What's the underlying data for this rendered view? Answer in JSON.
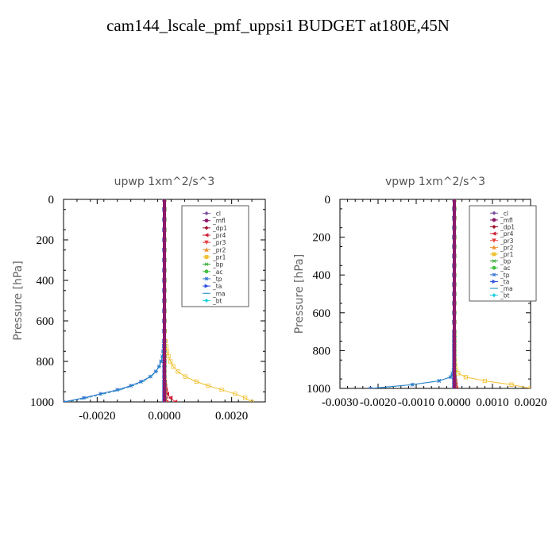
{
  "page": {
    "title": "cam144_lscale_pmf_uppsi1  BUDGET at180E,45N"
  },
  "chart_data": [
    {
      "type": "line",
      "title": "upwp   1xm^2/s^3",
      "ylabel": "Pressure [hPa]",
      "xlabel": "",
      "xlim": [
        -0.003,
        0.003
      ],
      "ylim": [
        1000,
        0
      ],
      "y_ticks": [
        0,
        200,
        400,
        600,
        800,
        1000
      ],
      "y_tick_labels": [
        "0",
        "200",
        "400",
        "600",
        "800",
        "1000"
      ],
      "x_ticks": [
        -0.002,
        0.0,
        0.002
      ],
      "x_tick_labels": [
        "-0.0020",
        "0.0000",
        "0.0020"
      ],
      "legend_position": "top-right",
      "pressure_levels": [
        0,
        50,
        100,
        150,
        200,
        250,
        300,
        350,
        400,
        450,
        500,
        550,
        600,
        650,
        700,
        725,
        750,
        775,
        800,
        825,
        850,
        875,
        900,
        920,
        940,
        960,
        980,
        1000
      ],
      "series": [
        {
          "name": "_cl",
          "color": "#7b4fa0",
          "marker": "diamond",
          "values": [
            0,
            0,
            0,
            0,
            0,
            0,
            0,
            0,
            0,
            0,
            0,
            0,
            0,
            0,
            0,
            0,
            0,
            0,
            0,
            0,
            0,
            0,
            0,
            0,
            0,
            0,
            0,
            0
          ]
        },
        {
          "name": "_mfl",
          "color": "#8b1a6b",
          "marker": "circle",
          "values": [
            0,
            0,
            0,
            0,
            0,
            0,
            0,
            0,
            0,
            0,
            0,
            0,
            0,
            0,
            0,
            0,
            0,
            0,
            0,
            0,
            0,
            0,
            0,
            0,
            0,
            0,
            0,
            0
          ]
        },
        {
          "name": "_dp1",
          "color": "#a0102a",
          "marker": "diamond",
          "values": [
            0,
            0,
            0,
            0,
            0,
            0,
            0,
            0,
            0,
            0,
            0,
            0,
            0,
            0,
            0,
            0,
            0,
            0,
            0,
            0,
            0,
            0,
            0,
            0,
            1e-05,
            2e-05,
            4e-05,
            8e-05
          ]
        },
        {
          "name": "_pr4",
          "color": "#d0203a",
          "marker": "triangle-left",
          "values": [
            0,
            0,
            0,
            0,
            0,
            0,
            0,
            0,
            0,
            0,
            0,
            0,
            0,
            0,
            0,
            0,
            0,
            0,
            0,
            0,
            0,
            0,
            1e-05,
            2e-05,
            4e-05,
            8e-05,
            0.00018,
            0.00032
          ]
        },
        {
          "name": "_pr3",
          "color": "#e84040",
          "marker": "triangle-down",
          "values": [
            0,
            0,
            0,
            0,
            0,
            0,
            0,
            0,
            0,
            0,
            0,
            0,
            0,
            0,
            0,
            0,
            0,
            0,
            0,
            0,
            0,
            0,
            0,
            0,
            1e-05,
            2e-05,
            4e-05,
            6e-05
          ]
        },
        {
          "name": "_pr2",
          "color": "#f09030",
          "marker": "triangle-up",
          "values": [
            0,
            0,
            0,
            0,
            0,
            0,
            0,
            0,
            0,
            0,
            0,
            0,
            0,
            0,
            0,
            0,
            0,
            0,
            0,
            0,
            0,
            0,
            0,
            0,
            0,
            0,
            0,
            0
          ]
        },
        {
          "name": "_pr1",
          "color": "#f0c030",
          "marker": "square",
          "values": [
            0,
            0,
            0,
            0,
            0,
            0,
            0,
            0,
            0,
            0,
            0,
            0,
            0,
            1e-05,
            3e-05,
            5e-05,
            8e-05,
            0.00012,
            0.00018,
            0.00026,
            0.0004,
            0.00062,
            0.00095,
            0.0013,
            0.0017,
            0.0021,
            0.0024,
            0.0026
          ]
        },
        {
          "name": "_bp",
          "color": "#20a020",
          "marker": "cross",
          "values": [
            0,
            0,
            0,
            0,
            0,
            0,
            0,
            0,
            0,
            0,
            0,
            0,
            0,
            0,
            0,
            0,
            0,
            0,
            0,
            0,
            0,
            0,
            0,
            0,
            0,
            0,
            0,
            0
          ]
        },
        {
          "name": "_ac",
          "color": "#40c040",
          "marker": "circle",
          "values": [
            0,
            0,
            0,
            0,
            0,
            0,
            0,
            0,
            0,
            0,
            0,
            0,
            0,
            0,
            0,
            0,
            0,
            0,
            0,
            0,
            0,
            0,
            0,
            0,
            0,
            0,
            0,
            0
          ]
        },
        {
          "name": "_tp",
          "color": "#3070d0",
          "marker": "star",
          "values": [
            0,
            0,
            0,
            0,
            0,
            0,
            0,
            0,
            0,
            0,
            0,
            0,
            0,
            0,
            -1e-05,
            -2e-05,
            -4e-05,
            -6e-05,
            -0.0001,
            -0.00016,
            -0.00026,
            -0.00042,
            -0.0007,
            -0.001,
            -0.0014,
            -0.0019,
            -0.0024,
            -0.003
          ]
        },
        {
          "name": "_ta",
          "color": "#3050e0",
          "marker": "triangle-right",
          "values": [
            0,
            0,
            0,
            0,
            0,
            0,
            0,
            0,
            0,
            0,
            0,
            0,
            0,
            0,
            0,
            0,
            0,
            0,
            0,
            0,
            0,
            0,
            0,
            0,
            0,
            0,
            0,
            0
          ]
        },
        {
          "name": "_ma",
          "color": "#2090c0",
          "marker": "dash",
          "values": [
            0,
            0,
            0,
            0,
            0,
            0,
            0,
            0,
            0,
            0,
            0,
            0,
            0,
            0,
            -1e-05,
            -2e-05,
            -4e-05,
            -6e-05,
            -0.0001,
            -0.00015,
            -0.00024,
            -0.0004,
            -0.00065,
            -0.00095,
            -0.0013,
            -0.0018,
            -0.0023,
            -0.0029
          ]
        },
        {
          "name": "_bt",
          "color": "#20d0e0",
          "marker": "diamond",
          "values": [
            0,
            0,
            0,
            0,
            0,
            0,
            0,
            0,
            0,
            0,
            0,
            0,
            0,
            0,
            0,
            0,
            0,
            0,
            0,
            0,
            0,
            0,
            0,
            0,
            0,
            0,
            0,
            0
          ]
        }
      ]
    },
    {
      "type": "line",
      "title": "vpwp   1xm^2/s^3",
      "ylabel": "Pressure [hPa]",
      "xlabel": "",
      "xlim": [
        -0.003,
        0.002
      ],
      "ylim": [
        1000,
        0
      ],
      "y_ticks": [
        0,
        200,
        400,
        600,
        800,
        1000
      ],
      "y_tick_labels": [
        "0",
        "200",
        "400",
        "600",
        "800",
        "1000"
      ],
      "x_ticks": [
        -0.003,
        -0.002,
        -0.001,
        0.0,
        0.001,
        0.002
      ],
      "x_tick_labels": [
        "-0.0030",
        "-0.0020",
        "-0.0010",
        "0.0000",
        "0.0010",
        "0.0020"
      ],
      "legend_position": "top-right",
      "pressure_levels": [
        0,
        50,
        100,
        150,
        200,
        250,
        300,
        350,
        400,
        450,
        500,
        550,
        600,
        650,
        700,
        725,
        750,
        775,
        800,
        825,
        850,
        875,
        900,
        920,
        940,
        960,
        980,
        1000
      ],
      "series": [
        {
          "name": "_cl",
          "color": "#7b4fa0",
          "marker": "diamond",
          "values": [
            0,
            0,
            0,
            0,
            0,
            0,
            0,
            0,
            0,
            0,
            0,
            0,
            0,
            0,
            0,
            0,
            0,
            0,
            0,
            0,
            0,
            0,
            0,
            0,
            0,
            0,
            0,
            0
          ]
        },
        {
          "name": "_mfl",
          "color": "#8b1a6b",
          "marker": "circle",
          "values": [
            0,
            0,
            0,
            0,
            0,
            0,
            0,
            0,
            0,
            0,
            0,
            0,
            0,
            0,
            0,
            0,
            0,
            0,
            0,
            0,
            0,
            0,
            0,
            0,
            0,
            0,
            0,
            0
          ]
        },
        {
          "name": "_dp1",
          "color": "#a0102a",
          "marker": "diamond",
          "values": [
            0,
            0,
            0,
            0,
            0,
            0,
            0,
            0,
            0,
            0,
            0,
            0,
            0,
            0,
            0,
            0,
            0,
            0,
            0,
            0,
            0,
            0,
            0,
            0,
            0,
            0,
            1e-05,
            2e-05
          ]
        },
        {
          "name": "_pr4",
          "color": "#d0203a",
          "marker": "triangle-left",
          "values": [
            0,
            0,
            0,
            0,
            0,
            0,
            0,
            0,
            0,
            0,
            0,
            0,
            0,
            0,
            0,
            0,
            0,
            0,
            0,
            0,
            0,
            0,
            0,
            0,
            1e-05,
            2e-05,
            3e-05,
            5e-05
          ]
        },
        {
          "name": "_pr3",
          "color": "#e84040",
          "marker": "triangle-down",
          "values": [
            0,
            0,
            0,
            0,
            0,
            0,
            0,
            0,
            0,
            0,
            0,
            0,
            0,
            0,
            0,
            0,
            0,
            0,
            0,
            0,
            0,
            0,
            0,
            0,
            0,
            0,
            0,
            0
          ]
        },
        {
          "name": "_pr2",
          "color": "#f09030",
          "marker": "triangle-up",
          "values": [
            0,
            0,
            0,
            0,
            0,
            0,
            0,
            0,
            0,
            0,
            0,
            0,
            0,
            0,
            0,
            0,
            0,
            0,
            0,
            0,
            0,
            0,
            0,
            0,
            0,
            0,
            0,
            0
          ]
        },
        {
          "name": "_pr1",
          "color": "#f0c030",
          "marker": "square",
          "values": [
            0,
            0,
            0,
            0,
            0,
            0,
            0,
            0,
            0,
            0,
            0,
            0,
            0,
            0,
            0,
            0,
            0,
            0,
            0,
            0,
            1e-05,
            2e-05,
            5e-05,
            0.0001,
            0.0003,
            0.0008,
            0.0015,
            0.002
          ]
        },
        {
          "name": "_bp",
          "color": "#20a020",
          "marker": "cross",
          "values": [
            0,
            0,
            0,
            0,
            0,
            0,
            0,
            0,
            0,
            0,
            0,
            0,
            0,
            0,
            0,
            0,
            0,
            0,
            0,
            0,
            0,
            0,
            0,
            0,
            0,
            0,
            0,
            0
          ]
        },
        {
          "name": "_ac",
          "color": "#40c040",
          "marker": "circle",
          "values": [
            0,
            0,
            0,
            0,
            0,
            0,
            0,
            0,
            0,
            0,
            0,
            0,
            0,
            0,
            0,
            0,
            0,
            0,
            0,
            0,
            0,
            0,
            0,
            0,
            0,
            0,
            0,
            0
          ]
        },
        {
          "name": "_tp",
          "color": "#3070d0",
          "marker": "star",
          "values": [
            0,
            0,
            0,
            0,
            0,
            0,
            0,
            0,
            0,
            0,
            0,
            0,
            0,
            0,
            0,
            0,
            0,
            0,
            0,
            0,
            0,
            -1e-05,
            -2e-05,
            -5e-05,
            -0.0001,
            -0.0004,
            -0.0011,
            -0.0022
          ]
        },
        {
          "name": "_ta",
          "color": "#3050e0",
          "marker": "triangle-right",
          "values": [
            0,
            0,
            0,
            0,
            0,
            0,
            0,
            0,
            0,
            0,
            0,
            0,
            0,
            0,
            0,
            0,
            0,
            0,
            0,
            0,
            0,
            0,
            0,
            0,
            0,
            0,
            0,
            0
          ]
        },
        {
          "name": "_ma",
          "color": "#2090c0",
          "marker": "dash",
          "values": [
            0,
            0,
            0,
            0,
            0,
            0,
            0,
            0,
            0,
            0,
            0,
            0,
            0,
            0,
            0,
            0,
            0,
            0,
            0,
            0,
            0,
            -1e-05,
            -2e-05,
            -4e-05,
            -0.0001,
            -0.0004,
            -0.0011,
            -0.0021
          ]
        },
        {
          "name": "_bt",
          "color": "#20d0e0",
          "marker": "diamond",
          "values": [
            0,
            0,
            0,
            0,
            0,
            0,
            0,
            0,
            0,
            0,
            0,
            0,
            0,
            0,
            0,
            0,
            0,
            0,
            0,
            0,
            0,
            0,
            0,
            0,
            0,
            0,
            0,
            0
          ]
        }
      ]
    }
  ]
}
